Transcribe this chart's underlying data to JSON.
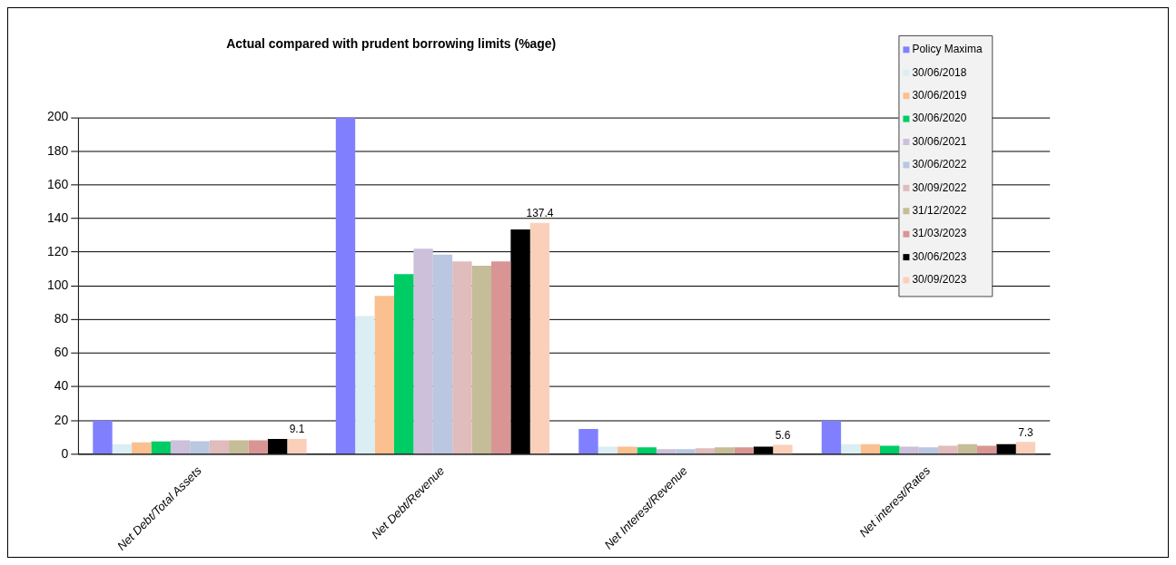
{
  "chart_data": {
    "type": "bar",
    "title": "Actual compared with prudent borrowing limits (%age)",
    "categories": [
      "Net Debt/Total Assets",
      "Net Debt/Revenue",
      "Net Interest/Revenue",
      "Net interest/Rates"
    ],
    "series": [
      {
        "name": "Policy Maxima",
        "color": "#8080ff",
        "values": [
          20,
          200,
          15,
          20
        ]
      },
      {
        "name": "30/06/2018",
        "color": "#daeef3",
        "values": [
          6,
          82,
          4.5,
          6
        ]
      },
      {
        "name": "30/06/2019",
        "color": "#fac090",
        "values": [
          7,
          94,
          4.5,
          6
        ]
      },
      {
        "name": "30/06/2020",
        "color": "#00cc66",
        "values": [
          7.5,
          107,
          4,
          5
        ]
      },
      {
        "name": "30/06/2021",
        "color": "#ccc0da",
        "values": [
          8.3,
          122,
          3,
          4.5
        ]
      },
      {
        "name": "30/06/2022",
        "color": "#b9c7e0",
        "values": [
          7.7,
          118.5,
          3,
          4
        ]
      },
      {
        "name": "30/09/2022",
        "color": "#e0bcbc",
        "values": [
          8.2,
          114.5,
          3.5,
          5
        ]
      },
      {
        "name": "31/12/2022",
        "color": "#c4bd97",
        "values": [
          8.2,
          112,
          4,
          6
        ]
      },
      {
        "name": "31/03/2023",
        "color": "#d99594",
        "values": [
          8.2,
          114.5,
          4,
          5
        ]
      },
      {
        "name": "30/06/2023",
        "color": "#000000",
        "values": [
          9,
          133.5,
          4.5,
          6
        ]
      },
      {
        "name": "30/09/2023",
        "color": "#fbd0bb",
        "values": [
          9.1,
          137.4,
          5.6,
          7.3
        ],
        "value_labels": [
          "9.1",
          "137.4",
          "5.6",
          "7.3"
        ]
      }
    ],
    "ylim": [
      0,
      200
    ],
    "yticks": [
      0,
      20,
      40,
      60,
      80,
      100,
      120,
      140,
      160,
      180,
      200
    ],
    "grid": "y",
    "legend": "top right"
  }
}
